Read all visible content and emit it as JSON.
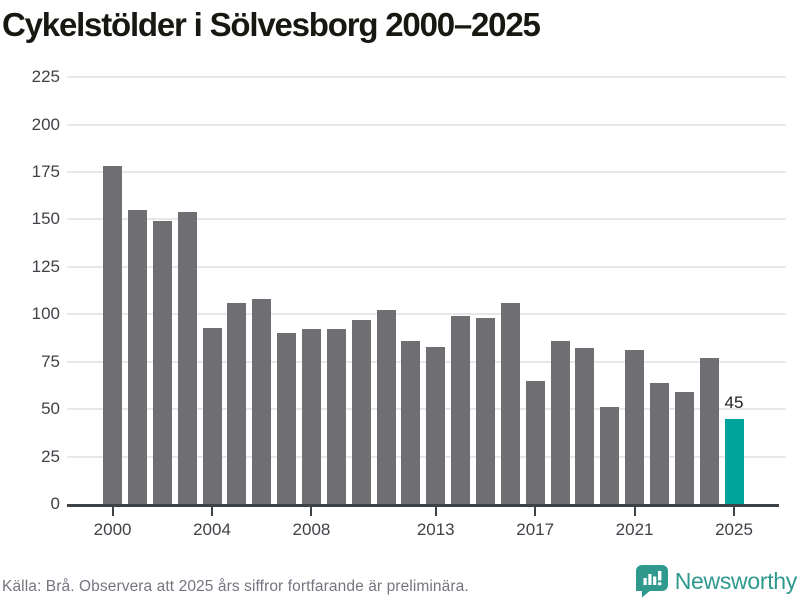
{
  "title": "Cykelstölder i Sölvesborg 2000–2025",
  "chart_data": {
    "type": "bar",
    "title": "Cykelstölder i Sölvesborg 2000–2025",
    "x": [
      2000,
      2001,
      2002,
      2003,
      2004,
      2005,
      2006,
      2007,
      2008,
      2009,
      2010,
      2011,
      2012,
      2013,
      2014,
      2015,
      2016,
      2017,
      2018,
      2019,
      2020,
      2021,
      2022,
      2023,
      2024,
      2025
    ],
    "values": [
      178,
      155,
      149,
      154,
      93,
      106,
      108,
      90,
      92,
      92,
      97,
      102,
      86,
      83,
      99,
      98,
      106,
      65,
      86,
      82,
      51,
      81,
      64,
      59,
      77,
      45
    ],
    "xlabel": "",
    "ylabel": "",
    "ylim": [
      0,
      225
    ],
    "y_ticks": [
      0,
      25,
      50,
      75,
      100,
      125,
      150,
      175,
      200,
      225
    ],
    "x_tick_years": [
      2000,
      2004,
      2008,
      2013,
      2017,
      2021,
      2025
    ],
    "grid": true,
    "legend": "none",
    "highlight_year": 2025,
    "highlight_value_label": "45",
    "bar_color": "#6e6e73",
    "highlight_color": "#00a49b"
  },
  "colors": {
    "title": "#181813",
    "grid": "#e8e8e8",
    "axis": "#3d4247",
    "tick_label": "#3f4247",
    "value_label": "#1f1f1f",
    "footer_text": "#757580",
    "brand_teal": "#2f998e"
  },
  "footer": {
    "source_note": "Källa: Brå. Observera att 2025 års siffror fortfarande är preliminära.",
    "brand": "Newsworthy"
  }
}
